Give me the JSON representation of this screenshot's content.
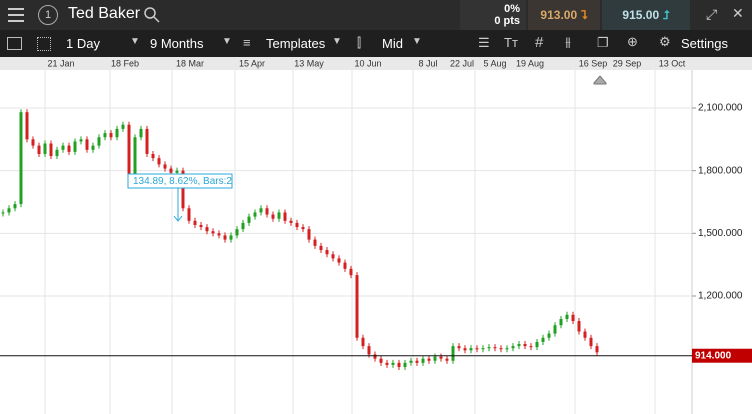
{
  "header": {
    "account": "1",
    "instrument": "Ted Baker",
    "change_pct": "0%",
    "change_pts": "0 pts",
    "sell": "913.00",
    "buy": "915.00"
  },
  "toolbar": {
    "interval": "1 Day",
    "range": "9 Months",
    "templates": "Templates",
    "price": "Mid",
    "settings": "Settings"
  },
  "chart_data": {
    "type": "candlestick",
    "x_labels": [
      "21 Jan",
      "18 Feb",
      "18 Mar",
      "15 Apr",
      "13 May",
      "10 Jun",
      "8 Jul",
      "22 Jul",
      "5 Aug",
      "19 Aug",
      "16 Sep",
      "29 Sep",
      "13 Oct"
    ],
    "closes": [
      1600,
      1620,
      1640,
      2080,
      1950,
      1920,
      1880,
      1930,
      1870,
      1900,
      1920,
      1890,
      1940,
      1950,
      1900,
      1920,
      1960,
      1980,
      1960,
      2000,
      2020,
      1780,
      1960,
      2000,
      1880,
      1860,
      1830,
      1810,
      1790,
      1800,
      1620,
      1560,
      1540,
      1530,
      1510,
      1500,
      1490,
      1470,
      1490,
      1520,
      1550,
      1580,
      1600,
      1620,
      1590,
      1570,
      1600,
      1560,
      1550,
      1530,
      1520,
      1470,
      1440,
      1420,
      1400,
      1380,
      1360,
      1330,
      1300,
      1000,
      960,
      920,
      900,
      880,
      870,
      880,
      860,
      880,
      890,
      880,
      900,
      890,
      910,
      900,
      890,
      960,
      950,
      940,
      950,
      945,
      950,
      955,
      950,
      945,
      950,
      960,
      970,
      960,
      955,
      980,
      1000,
      1020,
      1060,
      1090,
      1110,
      1080,
      1030,
      1000,
      960,
      930
    ],
    "ylim": [
      635,
      2282
    ],
    "yticks": [
      {
        "value": 1200,
        "label": "1,200.000"
      },
      {
        "value": 1500,
        "label": "1,500.000"
      },
      {
        "value": 1800,
        "label": "1,800.000"
      },
      {
        "value": 2100,
        "label": "2,100.000"
      }
    ],
    "last_price": {
      "value": 914,
      "label": "914.000"
    },
    "annotation": "134.89, 8.62%, Bars:2",
    "up_color": "#22a022",
    "down_color": "#d42020",
    "grid": true
  }
}
